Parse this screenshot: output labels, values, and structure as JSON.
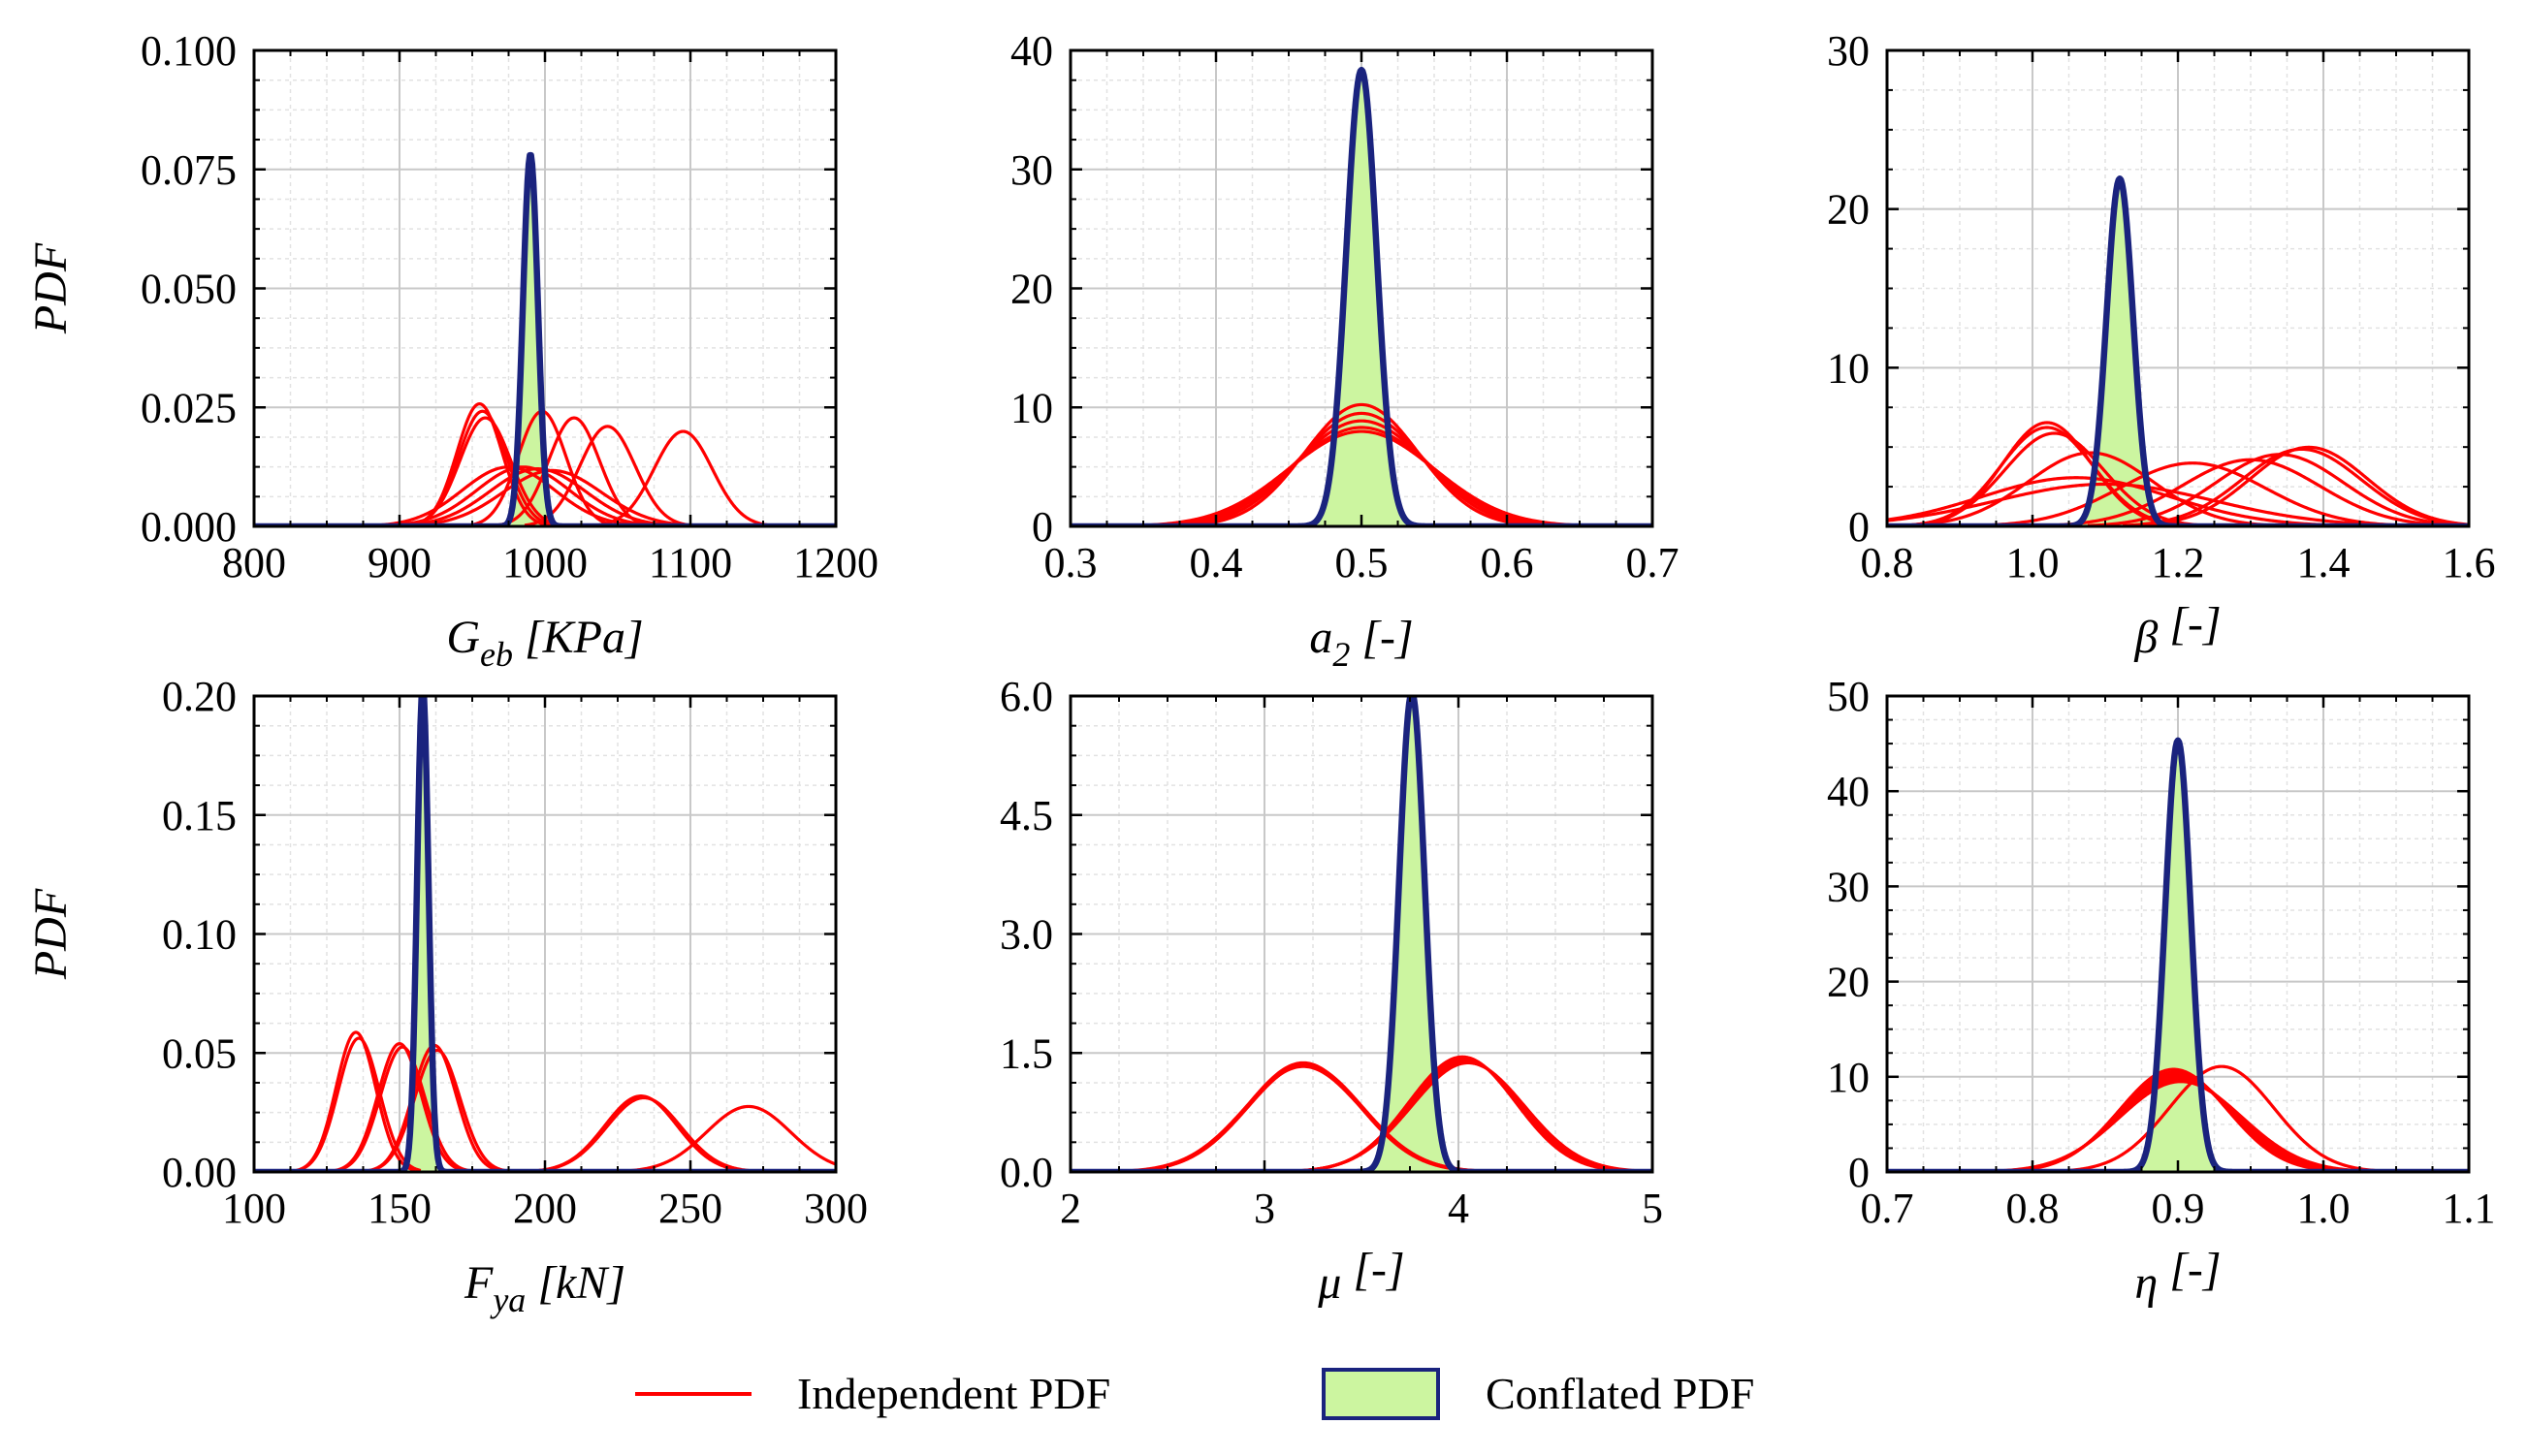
{
  "figure": {
    "legend": {
      "placement": "bottom-center",
      "items": [
        {
          "label": "Independent PDF",
          "kind": "line",
          "color": "#ff0000"
        },
        {
          "label": "Conflated PDF",
          "kind": "patch",
          "fill": "#ccf5a0",
          "edge": "#1a237e"
        }
      ]
    }
  },
  "colors": {
    "independent": "#ff0000",
    "conflated_line": "#1a237e",
    "conflated_fill": "#ccf5a0",
    "grid": "#c8c8c8",
    "minor_grid": "#e2e2e2"
  },
  "chart_data": [
    {
      "type": "line",
      "panel": "G_eb",
      "xlabel": {
        "main": "G",
        "sub": "eb",
        "unit": " [KPa]"
      },
      "ylabel": "PDF",
      "xlim": [
        800,
        1200
      ],
      "ylim": [
        0,
        0.1
      ],
      "xticks": [
        "800",
        "900",
        "1000",
        "1100",
        "1200"
      ],
      "yticks": [
        "0.000",
        "0.025",
        "0.050",
        "0.075",
        "0.100"
      ],
      "conflated": {
        "mu": 990,
        "sigma": 5.1
      },
      "independent": [
        {
          "mu": 955,
          "sigma": 15.5
        },
        {
          "mu": 957,
          "sigma": 16.5
        },
        {
          "mu": 959,
          "sigma": 17.5
        },
        {
          "mu": 998,
          "sigma": 16.5
        },
        {
          "mu": 1020,
          "sigma": 17.5
        },
        {
          "mu": 1043,
          "sigma": 19
        },
        {
          "mu": 1095,
          "sigma": 20
        },
        {
          "mu": 975,
          "sigma": 32
        },
        {
          "mu": 985,
          "sigma": 32
        },
        {
          "mu": 995,
          "sigma": 33
        },
        {
          "mu": 1005,
          "sigma": 34
        }
      ]
    },
    {
      "type": "line",
      "panel": "a_2",
      "xlabel": {
        "main": "a",
        "sub": "2",
        "unit": " [-]"
      },
      "ylabel": "",
      "xlim": [
        0.3,
        0.7
      ],
      "ylim": [
        0,
        40
      ],
      "xticks": [
        "0.3",
        "0.4",
        "0.5",
        "0.6",
        "0.7"
      ],
      "yticks": [
        "0",
        "10",
        "20",
        "30",
        "40"
      ],
      "conflated": {
        "mu": 0.5,
        "sigma": 0.0104
      },
      "independent": [
        {
          "mu": 0.5,
          "sigma": 0.039
        },
        {
          "mu": 0.5,
          "sigma": 0.042
        },
        {
          "mu": 0.5,
          "sigma": 0.045
        },
        {
          "mu": 0.5,
          "sigma": 0.048
        },
        {
          "mu": 0.5,
          "sigma": 0.05
        }
      ]
    },
    {
      "type": "line",
      "panel": "beta",
      "xlabel": {
        "main": "β",
        "sub": "",
        "unit": " [-]"
      },
      "ylabel": "",
      "xlim": [
        0.8,
        1.6
      ],
      "ylim": [
        0,
        30
      ],
      "xticks": [
        "0.8",
        "1.0",
        "1.2",
        "1.4",
        "1.6"
      ],
      "yticks": [
        "0",
        "10",
        "20",
        "30"
      ],
      "conflated": {
        "mu": 1.12,
        "sigma": 0.0182
      },
      "independent": [
        {
          "mu": 1.02,
          "sigma": 0.061
        },
        {
          "mu": 1.02,
          "sigma": 0.064
        },
        {
          "mu": 1.03,
          "sigma": 0.068
        },
        {
          "mu": 1.08,
          "sigma": 0.086
        },
        {
          "mu": 1.06,
          "sigma": 0.13
        },
        {
          "mu": 1.1,
          "sigma": 0.15
        },
        {
          "mu": 1.22,
          "sigma": 0.1
        },
        {
          "mu": 1.3,
          "sigma": 0.095
        },
        {
          "mu": 1.34,
          "sigma": 0.088
        },
        {
          "mu": 1.37,
          "sigma": 0.082
        },
        {
          "mu": 1.38,
          "sigma": 0.08
        }
      ]
    },
    {
      "type": "line",
      "panel": "F_ya",
      "xlabel": {
        "main": "F",
        "sub": "ya",
        "unit": " [kN]"
      },
      "ylabel": "PDF",
      "xlim": [
        100,
        300
      ],
      "ylim": [
        0,
        0.2
      ],
      "xticks": [
        "100",
        "150",
        "200",
        "250",
        "300"
      ],
      "yticks": [
        "0.00",
        "0.05",
        "0.10",
        "0.15",
        "0.20"
      ],
      "conflated": {
        "mu": 158,
        "sigma": 1.95
      },
      "independent": [
        {
          "mu": 135,
          "sigma": 6.8
        },
        {
          "mu": 136,
          "sigma": 7.1
        },
        {
          "mu": 150,
          "sigma": 7.4
        },
        {
          "mu": 151,
          "sigma": 7.6
        },
        {
          "mu": 162,
          "sigma": 7.5
        },
        {
          "mu": 163,
          "sigma": 7.8
        },
        {
          "mu": 233,
          "sigma": 12.5
        },
        {
          "mu": 234,
          "sigma": 12.8
        },
        {
          "mu": 270,
          "sigma": 14.5
        }
      ]
    },
    {
      "type": "line",
      "panel": "mu",
      "xlabel": {
        "main": "μ",
        "sub": "",
        "unit": " [-]"
      },
      "ylabel": "",
      "xlim": [
        2,
        5
      ],
      "ylim": [
        0,
        6
      ],
      "xticks": [
        "2",
        "3",
        "4",
        "5"
      ],
      "yticks": [
        "0.0",
        "1.5",
        "3.0",
        "4.5",
        "6.0"
      ],
      "conflated": {
        "mu": 3.76,
        "sigma": 0.066
      },
      "independent": [
        {
          "mu": 3.2,
          "sigma": 0.29
        },
        {
          "mu": 3.21,
          "sigma": 0.295
        },
        {
          "mu": 3.2,
          "sigma": 0.3
        },
        {
          "mu": 4.02,
          "sigma": 0.275
        },
        {
          "mu": 4.03,
          "sigma": 0.28
        },
        {
          "mu": 4.04,
          "sigma": 0.285
        },
        {
          "mu": 4.05,
          "sigma": 0.29
        }
      ]
    },
    {
      "type": "line",
      "panel": "eta",
      "xlabel": {
        "main": "η",
        "sub": "",
        "unit": " [-]"
      },
      "ylabel": "",
      "xlim": [
        0.7,
        1.1
      ],
      "ylim": [
        0,
        50
      ],
      "xticks": [
        "0.7",
        "0.8",
        "0.9",
        "1.0",
        "1.1"
      ],
      "yticks": [
        "0",
        "10",
        "20",
        "30",
        "40",
        "50"
      ],
      "conflated": {
        "mu": 0.9,
        "sigma": 0.0088
      },
      "independent": [
        {
          "mu": 0.897,
          "sigma": 0.037
        },
        {
          "mu": 0.898,
          "sigma": 0.038
        },
        {
          "mu": 0.899,
          "sigma": 0.039
        },
        {
          "mu": 0.9,
          "sigma": 0.04
        },
        {
          "mu": 0.901,
          "sigma": 0.041
        },
        {
          "mu": 0.902,
          "sigma": 0.042
        },
        {
          "mu": 0.93,
          "sigma": 0.036
        }
      ]
    }
  ]
}
